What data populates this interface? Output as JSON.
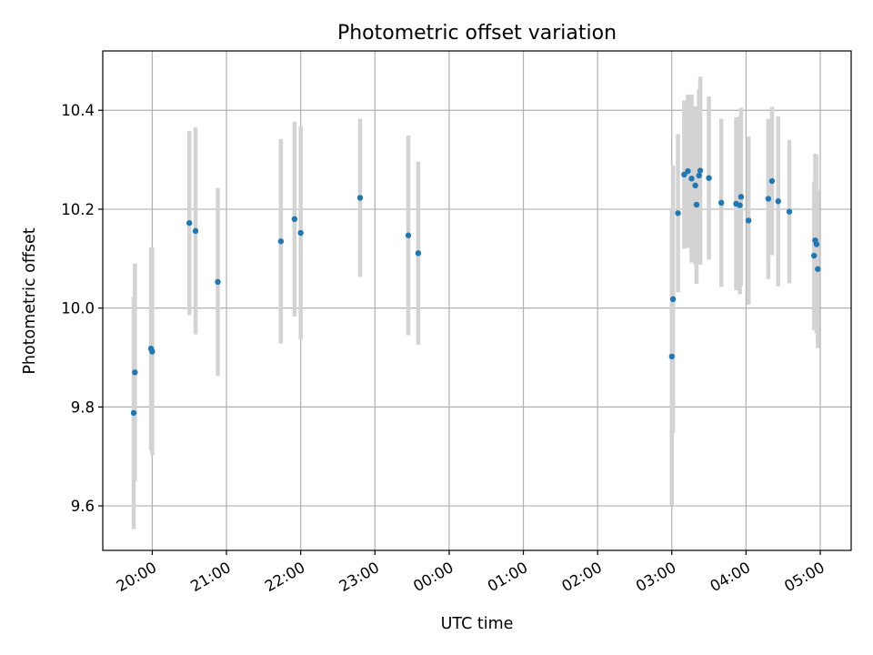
{
  "chart_data": {
    "type": "scatter",
    "title": "Photometric offset variation",
    "xlabel": "UTC time",
    "ylabel": "Photometric offset",
    "xlim": [
      "2023-01-01 19:20",
      "2023-01-02 05:25"
    ],
    "ylim": [
      9.51,
      10.52
    ],
    "grid": true,
    "x_tick_labels": [
      "20:00",
      "21:00",
      "22:00",
      "23:00",
      "00:00",
      "01:00",
      "02:00",
      "03:00",
      "04:00",
      "05:00"
    ],
    "x_ticks": [
      "2023-01-01 20:00",
      "2023-01-01 21:00",
      "2023-01-01 22:00",
      "2023-01-01 23:00",
      "2023-01-02 00:00",
      "2023-01-02 01:00",
      "2023-01-02 02:00",
      "2023-01-02 03:00",
      "2023-01-02 04:00",
      "2023-01-02 05:00"
    ],
    "y_ticks": [
      9.6,
      9.8,
      10.0,
      10.2,
      10.4
    ],
    "y_tick_labels": [
      "9.6",
      "9.8",
      "10.0",
      "10.2",
      "10.4"
    ],
    "point_color": "#1f77b4",
    "errorbar_color": "#d3d3d3",
    "points": [
      {
        "x": "2023-01-01 19:45",
        "y": 9.788,
        "err": 0.235
      },
      {
        "x": "2023-01-01 19:46",
        "y": 9.87,
        "err": 0.22
      },
      {
        "x": "2023-01-01 19:59",
        "y": 9.918,
        "err": 0.205
      },
      {
        "x": "2023-01-01 20:00",
        "y": 9.912,
        "err": 0.21
      },
      {
        "x": "2023-01-01 20:30",
        "y": 10.172,
        "err": 0.186
      },
      {
        "x": "2023-01-01 20:35",
        "y": 10.156,
        "err": 0.209
      },
      {
        "x": "2023-01-01 20:53",
        "y": 10.053,
        "err": 0.19
      },
      {
        "x": "2023-01-01 21:44",
        "y": 10.135,
        "err": 0.207
      },
      {
        "x": "2023-01-01 21:55",
        "y": 10.18,
        "err": 0.197
      },
      {
        "x": "2023-01-01 22:00",
        "y": 10.152,
        "err": 0.216
      },
      {
        "x": "2023-01-01 22:48",
        "y": 10.223,
        "err": 0.16
      },
      {
        "x": "2023-01-01 23:27",
        "y": 10.147,
        "err": 0.202
      },
      {
        "x": "2023-01-01 23:35",
        "y": 10.111,
        "err": 0.185
      },
      {
        "x": "2023-01-02 03:00",
        "y": 9.902,
        "err": 0.3
      },
      {
        "x": "2023-01-02 03:01",
        "y": 10.018,
        "err": 0.27
      },
      {
        "x": "2023-01-02 03:05",
        "y": 10.192,
        "err": 0.16
      },
      {
        "x": "2023-01-02 03:10",
        "y": 10.27,
        "err": 0.15
      },
      {
        "x": "2023-01-02 03:13",
        "y": 10.277,
        "err": 0.155
      },
      {
        "x": "2023-01-02 03:16",
        "y": 10.262,
        "err": 0.17
      },
      {
        "x": "2023-01-02 03:19",
        "y": 10.248,
        "err": 0.16
      },
      {
        "x": "2023-01-02 03:20",
        "y": 10.209,
        "err": 0.16
      },
      {
        "x": "2023-01-02 03:22",
        "y": 10.268,
        "err": 0.175
      },
      {
        "x": "2023-01-02 03:23",
        "y": 10.278,
        "err": 0.19
      },
      {
        "x": "2023-01-02 03:30",
        "y": 10.263,
        "err": 0.165
      },
      {
        "x": "2023-01-02 03:40",
        "y": 10.213,
        "err": 0.17
      },
      {
        "x": "2023-01-02 03:52",
        "y": 10.211,
        "err": 0.175
      },
      {
        "x": "2023-01-02 03:55",
        "y": 10.208,
        "err": 0.18
      },
      {
        "x": "2023-01-02 03:56",
        "y": 10.225,
        "err": 0.18
      },
      {
        "x": "2023-01-02 04:02",
        "y": 10.177,
        "err": 0.17
      },
      {
        "x": "2023-01-02 04:18",
        "y": 10.221,
        "err": 0.162
      },
      {
        "x": "2023-01-02 04:21",
        "y": 10.257,
        "err": 0.15
      },
      {
        "x": "2023-01-02 04:26",
        "y": 10.216,
        "err": 0.172
      },
      {
        "x": "2023-01-02 04:35",
        "y": 10.195,
        "err": 0.145
      },
      {
        "x": "2023-01-02 04:55",
        "y": 10.106,
        "err": 0.15
      },
      {
        "x": "2023-01-02 04:56",
        "y": 10.137,
        "err": 0.175
      },
      {
        "x": "2023-01-02 04:57",
        "y": 10.129,
        "err": 0.18
      },
      {
        "x": "2023-01-02 04:58",
        "y": 10.079,
        "err": 0.16
      }
    ]
  }
}
